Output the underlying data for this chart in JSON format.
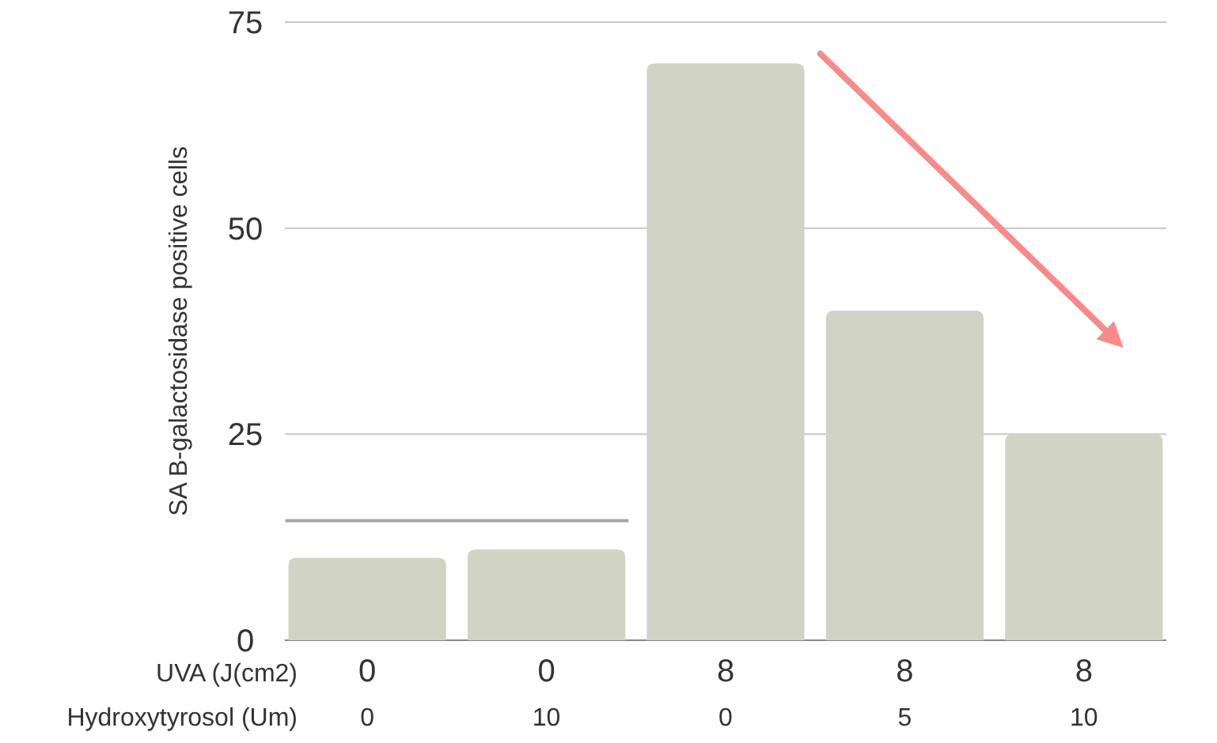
{
  "chart_data": {
    "type": "bar",
    "ylabel": "SA B-galactosidase positive cells",
    "categories": [
      "0\n0",
      "0\n10",
      "8\n0",
      "8\n5",
      "8\n10"
    ],
    "values": [
      10,
      11,
      70,
      40,
      25
    ],
    "color": "#d1d3c4",
    "ylim": [
      0,
      75
    ],
    "yticks": [
      0,
      25,
      50,
      75
    ],
    "grid": "y",
    "ref_lines": [
      {
        "axis": "y",
        "value": 14.5,
        "color": "#a6a6a6"
      }
    ],
    "annotations": [
      "UVA (J(cm2)",
      "Hydroxytyrosol (Um)"
    ]
  }
}
